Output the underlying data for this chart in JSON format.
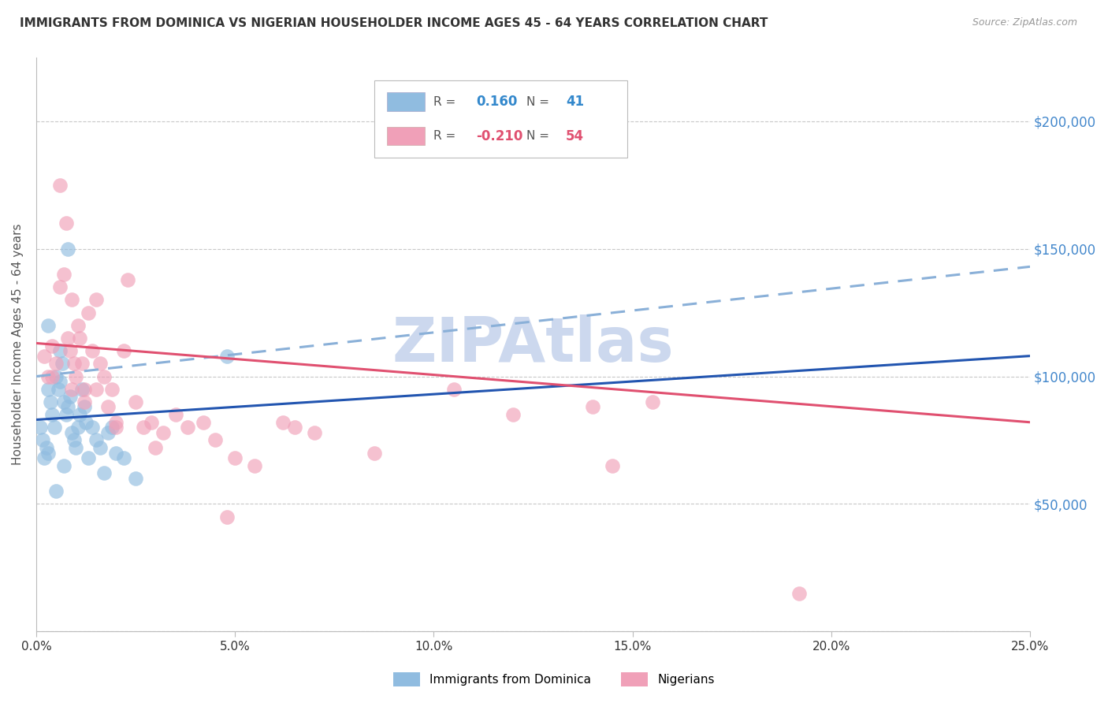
{
  "title": "IMMIGRANTS FROM DOMINICA VS NIGERIAN HOUSEHOLDER INCOME AGES 45 - 64 YEARS CORRELATION CHART",
  "source": "Source: ZipAtlas.com",
  "ylabel": "Householder Income Ages 45 - 64 years",
  "xlabel_vals": [
    0.0,
    5.0,
    10.0,
    15.0,
    20.0,
    25.0
  ],
  "xlabel_ticks": [
    "0.0%",
    "5.0%",
    "10.0%",
    "15.0%",
    "20.0%",
    "25.0%"
  ],
  "ylabel_ticks": [
    0,
    50000,
    100000,
    150000,
    200000
  ],
  "ylabel_labels": [
    "",
    "$50,000",
    "$100,000",
    "$150,000",
    "$200,000"
  ],
  "ylim": [
    0,
    225000
  ],
  "xlim": [
    0.0,
    25.0
  ],
  "dominica_R": 0.16,
  "dominica_N": 41,
  "nigerian_R": -0.21,
  "nigerian_N": 54,
  "dominica_color": "#90bce0",
  "nigerian_color": "#f0a0b8",
  "dominica_solid_color": "#2255b0",
  "dominica_dashed_color": "#8ab0d8",
  "nigerian_line_color": "#e05070",
  "background_color": "#ffffff",
  "grid_color": "#c8c8c8",
  "watermark": "ZIPAtlas",
  "watermark_color": "#ccd8ee",
  "dominica_x": [
    0.1,
    0.15,
    0.2,
    0.25,
    0.3,
    0.35,
    0.4,
    0.45,
    0.5,
    0.55,
    0.6,
    0.65,
    0.7,
    0.75,
    0.8,
    0.85,
    0.9,
    0.95,
    1.0,
    1.05,
    1.1,
    1.15,
    1.2,
    1.25,
    1.3,
    1.4,
    1.5,
    1.6,
    1.7,
    1.8,
    1.9,
    2.0,
    2.2,
    2.5,
    0.3,
    0.5,
    0.6,
    0.7,
    0.8,
    0.3,
    4.8
  ],
  "dominica_y": [
    80000,
    75000,
    68000,
    72000,
    95000,
    90000,
    85000,
    80000,
    100000,
    95000,
    98000,
    105000,
    90000,
    85000,
    88000,
    92000,
    78000,
    75000,
    72000,
    80000,
    85000,
    95000,
    88000,
    82000,
    68000,
    80000,
    75000,
    72000,
    62000,
    78000,
    80000,
    70000,
    68000,
    60000,
    120000,
    55000,
    110000,
    65000,
    150000,
    70000,
    108000
  ],
  "nigerian_x": [
    0.2,
    0.3,
    0.4,
    0.5,
    0.6,
    0.7,
    0.75,
    0.8,
    0.85,
    0.9,
    0.95,
    1.0,
    1.05,
    1.1,
    1.15,
    1.2,
    1.3,
    1.4,
    1.5,
    1.6,
    1.7,
    1.8,
    1.9,
    2.0,
    2.2,
    2.3,
    2.5,
    2.7,
    2.9,
    3.2,
    3.5,
    3.8,
    4.2,
    4.5,
    5.0,
    5.5,
    6.5,
    7.0,
    8.5,
    10.5,
    12.0,
    14.0,
    14.5,
    15.5,
    19.2,
    0.4,
    0.6,
    0.9,
    1.2,
    1.5,
    2.0,
    3.0,
    4.8,
    6.2
  ],
  "nigerian_y": [
    108000,
    100000,
    112000,
    105000,
    175000,
    140000,
    160000,
    115000,
    110000,
    130000,
    105000,
    100000,
    120000,
    115000,
    105000,
    95000,
    125000,
    110000,
    130000,
    105000,
    100000,
    88000,
    95000,
    82000,
    110000,
    138000,
    90000,
    80000,
    82000,
    78000,
    85000,
    80000,
    82000,
    75000,
    68000,
    65000,
    80000,
    78000,
    70000,
    95000,
    85000,
    88000,
    65000,
    90000,
    15000,
    100000,
    135000,
    95000,
    90000,
    95000,
    80000,
    72000,
    45000,
    82000
  ],
  "dom_line_x0": 0.0,
  "dom_line_y0": 83000,
  "dom_line_x1": 25.0,
  "dom_line_y1": 108000,
  "dash_line_x0": 0.0,
  "dash_line_y0": 100000,
  "dash_line_x1": 25.0,
  "dash_line_y1": 143000,
  "nig_line_x0": 0.0,
  "nig_line_y0": 113000,
  "nig_line_x1": 25.0,
  "nig_line_y1": 82000
}
